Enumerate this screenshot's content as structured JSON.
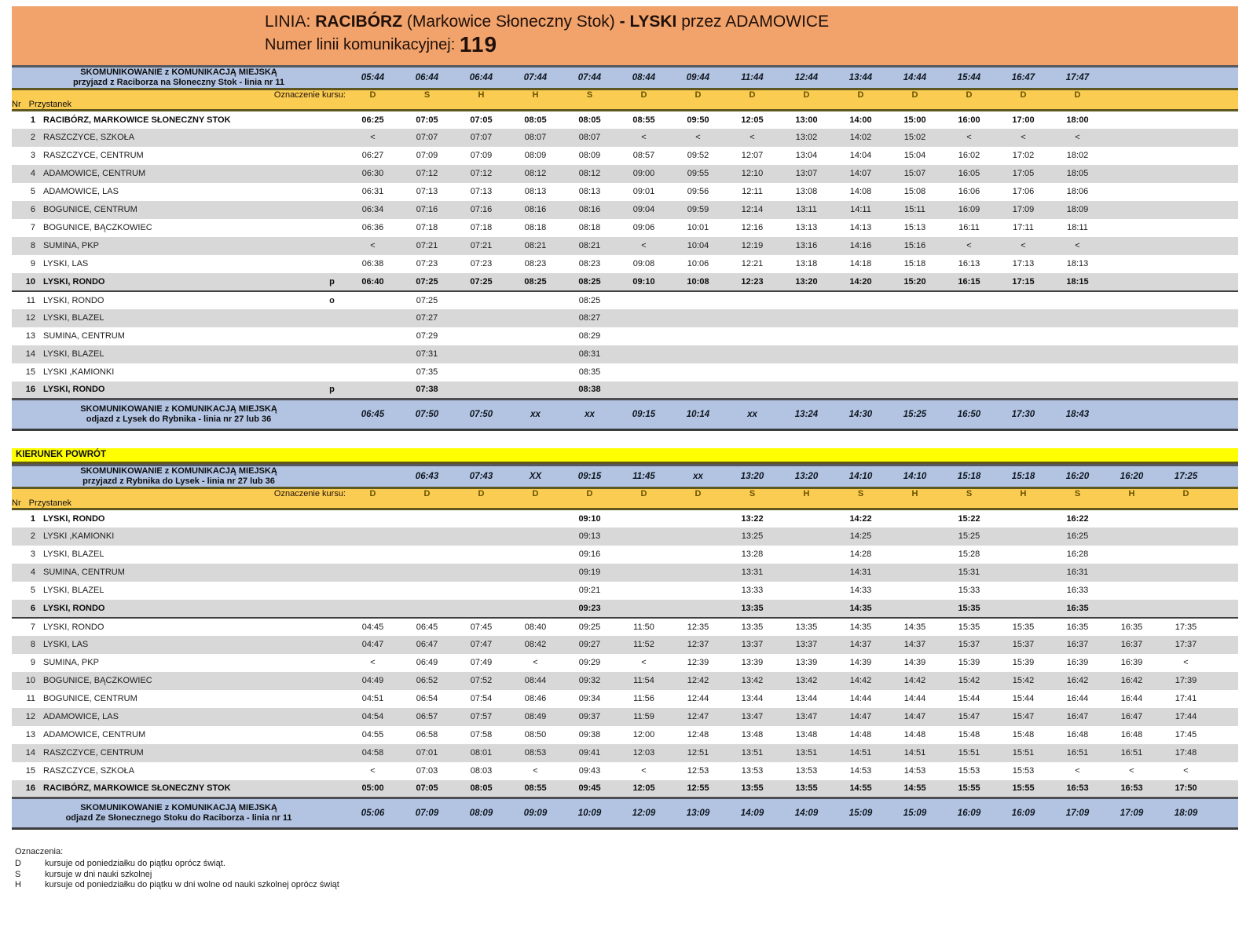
{
  "header": {
    "title_segments": [
      {
        "text": "LINIA: ",
        "bold": false
      },
      {
        "text": "RACIBÓRZ",
        "bold": true
      },
      {
        "text": " (Markowice Słoneczny Stok) ",
        "bold": false
      },
      {
        "text": "- LYSKI",
        "bold": true
      },
      {
        "text": "  przez ADAMOWICE",
        "bold": false
      }
    ],
    "line_number_label": "Numer linii komunikacyjnej: ",
    "line_number": "119"
  },
  "column_marks_label": "Oznaczenie kursu:",
  "stop_header": {
    "nr": "Nr",
    "przystanek": "Przystanek"
  },
  "colors": {
    "orange_header": "#F1A36B",
    "connection_blue": "#B2C4E2",
    "marks_gold": "#FBCC52",
    "banner_yellow": "#FFFF00",
    "stripe_gray": "#D8D8D8"
  },
  "tables": [
    {
      "banner": "",
      "top_connection": {
        "line1": "SKOMUNIKOWANIE z KOMUNIKACJĄ MIEJSKĄ",
        "line2": "przyjazd z Raciborza na Słoneczny Stok - linia nr 11",
        "times": [
          "05:44",
          "06:44",
          "06:44",
          "07:44",
          "07:44",
          "08:44",
          "09:44",
          "11:44",
          "12:44",
          "13:44",
          "14:44",
          "15:44",
          "16:47",
          "17:47",
          "",
          ""
        ]
      },
      "course_marks": [
        "D",
        "S",
        "H",
        "H",
        "S",
        "D",
        "D",
        "D",
        "D",
        "D",
        "D",
        "D",
        "D",
        "D",
        "",
        ""
      ],
      "rows": [
        {
          "nr": "1",
          "stop": "RACIBÓRZ, MARKOWICE SŁONECZNY STOK",
          "marker": "",
          "bold": true,
          "divider_after": false,
          "times": [
            "06:25",
            "07:05",
            "07:05",
            "08:05",
            "08:05",
            "08:55",
            "09:50",
            "12:05",
            "13:00",
            "14:00",
            "15:00",
            "16:00",
            "17:00",
            "18:00",
            "",
            ""
          ]
        },
        {
          "nr": "2",
          "stop": "RASZCZYCE, SZKOŁA",
          "marker": "",
          "bold": false,
          "divider_after": false,
          "times": [
            "<",
            "07:07",
            "07:07",
            "08:07",
            "08:07",
            "<",
            "<",
            "<",
            "13:02",
            "14:02",
            "15:02",
            "<",
            "<",
            "<",
            "",
            ""
          ]
        },
        {
          "nr": "3",
          "stop": "RASZCZYCE, CENTRUM",
          "marker": "",
          "bold": false,
          "divider_after": false,
          "times": [
            "06:27",
            "07:09",
            "07:09",
            "08:09",
            "08:09",
            "08:57",
            "09:52",
            "12:07",
            "13:04",
            "14:04",
            "15:04",
            "16:02",
            "17:02",
            "18:02",
            "",
            ""
          ]
        },
        {
          "nr": "4",
          "stop": "ADAMOWICE, CENTRUM",
          "marker": "",
          "bold": false,
          "divider_after": false,
          "times": [
            "06:30",
            "07:12",
            "07:12",
            "08:12",
            "08:12",
            "09:00",
            "09:55",
            "12:10",
            "13:07",
            "14:07",
            "15:07",
            "16:05",
            "17:05",
            "18:05",
            "",
            ""
          ]
        },
        {
          "nr": "5",
          "stop": "ADAMOWICE, LAS",
          "marker": "",
          "bold": false,
          "divider_after": false,
          "times": [
            "06:31",
            "07:13",
            "07:13",
            "08:13",
            "08:13",
            "09:01",
            "09:56",
            "12:11",
            "13:08",
            "14:08",
            "15:08",
            "16:06",
            "17:06",
            "18:06",
            "",
            ""
          ]
        },
        {
          "nr": "6",
          "stop": "BOGUNICE, CENTRUM",
          "marker": "",
          "bold": false,
          "divider_after": false,
          "times": [
            "06:34",
            "07:16",
            "07:16",
            "08:16",
            "08:16",
            "09:04",
            "09:59",
            "12:14",
            "13:11",
            "14:11",
            "15:11",
            "16:09",
            "17:09",
            "18:09",
            "",
            ""
          ]
        },
        {
          "nr": "7",
          "stop": "BOGUNICE, BĄCZKOWIEC",
          "marker": "",
          "bold": false,
          "divider_after": false,
          "times": [
            "06:36",
            "07:18",
            "07:18",
            "08:18",
            "08:18",
            "09:06",
            "10:01",
            "12:16",
            "13:13",
            "14:13",
            "15:13",
            "16:11",
            "17:11",
            "18:11",
            "",
            ""
          ]
        },
        {
          "nr": "8",
          "stop": "SUMINA, PKP",
          "marker": "",
          "bold": false,
          "divider_after": false,
          "times": [
            "<",
            "07:21",
            "07:21",
            "08:21",
            "08:21",
            "<",
            "10:04",
            "12:19",
            "13:16",
            "14:16",
            "15:16",
            "<",
            "<",
            "<",
            "",
            ""
          ]
        },
        {
          "nr": "9",
          "stop": "LYSKI, LAS",
          "marker": "",
          "bold": false,
          "divider_after": false,
          "times": [
            "06:38",
            "07:23",
            "07:23",
            "08:23",
            "08:23",
            "09:08",
            "10:06",
            "12:21",
            "13:18",
            "14:18",
            "15:18",
            "16:13",
            "17:13",
            "18:13",
            "",
            ""
          ]
        },
        {
          "nr": "10",
          "stop": "LYSKI, RONDO",
          "marker": "p",
          "bold": true,
          "divider_after": true,
          "times": [
            "06:40",
            "07:25",
            "07:25",
            "08:25",
            "08:25",
            "09:10",
            "10:08",
            "12:23",
            "13:20",
            "14:20",
            "15:20",
            "16:15",
            "17:15",
            "18:15",
            "",
            ""
          ]
        },
        {
          "nr": "11",
          "stop": "LYSKI, RONDO",
          "marker": "o",
          "bold": false,
          "divider_after": false,
          "times": [
            "",
            "07:25",
            "",
            "",
            "08:25",
            "",
            "",
            "",
            "",
            "",
            "",
            "",
            "",
            "",
            "",
            ""
          ]
        },
        {
          "nr": "12",
          "stop": "LYSKI, BLAZEL",
          "marker": "",
          "bold": false,
          "divider_after": false,
          "times": [
            "",
            "07:27",
            "",
            "",
            "08:27",
            "",
            "",
            "",
            "",
            "",
            "",
            "",
            "",
            "",
            "",
            ""
          ]
        },
        {
          "nr": "13",
          "stop": "SUMINA, CENTRUM",
          "marker": "",
          "bold": false,
          "divider_after": false,
          "times": [
            "",
            "07:29",
            "",
            "",
            "08:29",
            "",
            "",
            "",
            "",
            "",
            "",
            "",
            "",
            "",
            "",
            ""
          ]
        },
        {
          "nr": "14",
          "stop": "LYSKI, BLAZEL",
          "marker": "",
          "bold": false,
          "divider_after": false,
          "times": [
            "",
            "07:31",
            "",
            "",
            "08:31",
            "",
            "",
            "",
            "",
            "",
            "",
            "",
            "",
            "",
            "",
            ""
          ]
        },
        {
          "nr": "15",
          "stop": "LYSKI ,KAMIONKI",
          "marker": "",
          "bold": false,
          "divider_after": false,
          "times": [
            "",
            "07:35",
            "",
            "",
            "08:35",
            "",
            "",
            "",
            "",
            "",
            "",
            "",
            "",
            "",
            "",
            ""
          ]
        },
        {
          "nr": "16",
          "stop": "LYSKI, RONDO",
          "marker": "p",
          "bold": true,
          "divider_after": false,
          "times": [
            "",
            "07:38",
            "",
            "",
            "08:38",
            "",
            "",
            "",
            "",
            "",
            "",
            "",
            "",
            "",
            "",
            ""
          ]
        }
      ],
      "bottom_connection": {
        "line1": "SKOMUNIKOWANIE z KOMUNIKACJĄ MIEJSKĄ",
        "line2": "odjazd z Lysek do Rybnika - linia nr 27 lub 36",
        "times": [
          "06:45",
          "07:50",
          "07:50",
          "xx",
          "xx",
          "09:15",
          "10:14",
          "xx",
          "13:24",
          "14:30",
          "15:25",
          "16:50",
          "17:30",
          "18:43",
          "",
          ""
        ]
      }
    },
    {
      "banner": "KIERUNEK POWRÓT",
      "top_connection": {
        "line1": "SKOMUNIKOWANIE z KOMUNIKACJĄ MIEJSKĄ",
        "line2": "przyjazd z Rybnika do Lysek - linia nr 27 lub 36",
        "times": [
          "",
          "06:43",
          "07:43",
          "XX",
          "09:15",
          "11:45",
          "xx",
          "13:20",
          "13:20",
          "14:10",
          "14:10",
          "15:18",
          "15:18",
          "16:20",
          "16:20",
          "17:25"
        ]
      },
      "course_marks": [
        "D",
        "D",
        "D",
        "D",
        "D",
        "D",
        "D",
        "S",
        "H",
        "S",
        "H",
        "S",
        "H",
        "S",
        "H",
        "D"
      ],
      "rows": [
        {
          "nr": "1",
          "stop": "LYSKI, RONDO",
          "marker": "",
          "bold": true,
          "divider_after": false,
          "times": [
            "",
            "",
            "",
            "",
            "09:10",
            "",
            "",
            "13:22",
            "",
            "14:22",
            "",
            "15:22",
            "",
            "16:22",
            "",
            ""
          ]
        },
        {
          "nr": "2",
          "stop": "LYSKI ,KAMIONKI",
          "marker": "",
          "bold": false,
          "divider_after": false,
          "times": [
            "",
            "",
            "",
            "",
            "09:13",
            "",
            "",
            "13:25",
            "",
            "14:25",
            "",
            "15:25",
            "",
            "16:25",
            "",
            ""
          ]
        },
        {
          "nr": "3",
          "stop": "LYSKI, BLAZEL",
          "marker": "",
          "bold": false,
          "divider_after": false,
          "times": [
            "",
            "",
            "",
            "",
            "09:16",
            "",
            "",
            "13:28",
            "",
            "14:28",
            "",
            "15:28",
            "",
            "16:28",
            "",
            ""
          ]
        },
        {
          "nr": "4",
          "stop": "SUMINA, CENTRUM",
          "marker": "",
          "bold": false,
          "divider_after": false,
          "times": [
            "",
            "",
            "",
            "",
            "09:19",
            "",
            "",
            "13:31",
            "",
            "14:31",
            "",
            "15:31",
            "",
            "16:31",
            "",
            ""
          ]
        },
        {
          "nr": "5",
          "stop": "LYSKI, BLAZEL",
          "marker": "",
          "bold": false,
          "divider_after": false,
          "times": [
            "",
            "",
            "",
            "",
            "09:21",
            "",
            "",
            "13:33",
            "",
            "14:33",
            "",
            "15:33",
            "",
            "16:33",
            "",
            ""
          ]
        },
        {
          "nr": "6",
          "stop": "LYSKI, RONDO",
          "marker": "",
          "bold": true,
          "divider_after": true,
          "times": [
            "",
            "",
            "",
            "",
            "09:23",
            "",
            "",
            "13:35",
            "",
            "14:35",
            "",
            "15:35",
            "",
            "16:35",
            "",
            ""
          ]
        },
        {
          "nr": "7",
          "stop": "LYSKI, RONDO",
          "marker": "",
          "bold": false,
          "divider_after": false,
          "times": [
            "04:45",
            "06:45",
            "07:45",
            "08:40",
            "09:25",
            "11:50",
            "12:35",
            "13:35",
            "13:35",
            "14:35",
            "14:35",
            "15:35",
            "15:35",
            "16:35",
            "16:35",
            "17:35"
          ]
        },
        {
          "nr": "8",
          "stop": "LYSKI, LAS",
          "marker": "",
          "bold": false,
          "divider_after": false,
          "times": [
            "04:47",
            "06:47",
            "07:47",
            "08:42",
            "09:27",
            "11:52",
            "12:37",
            "13:37",
            "13:37",
            "14:37",
            "14:37",
            "15:37",
            "15:37",
            "16:37",
            "16:37",
            "17:37"
          ]
        },
        {
          "nr": "9",
          "stop": "SUMINA, PKP",
          "marker": "",
          "bold": false,
          "divider_after": false,
          "times": [
            "<",
            "06:49",
            "07:49",
            "<",
            "09:29",
            "<",
            "12:39",
            "13:39",
            "13:39",
            "14:39",
            "14:39",
            "15:39",
            "15:39",
            "16:39",
            "16:39",
            "<"
          ]
        },
        {
          "nr": "10",
          "stop": "BOGUNICE, BĄCZKOWIEC",
          "marker": "",
          "bold": false,
          "divider_after": false,
          "times": [
            "04:49",
            "06:52",
            "07:52",
            "08:44",
            "09:32",
            "11:54",
            "12:42",
            "13:42",
            "13:42",
            "14:42",
            "14:42",
            "15:42",
            "15:42",
            "16:42",
            "16:42",
            "17:39"
          ]
        },
        {
          "nr": "11",
          "stop": "BOGUNICE, CENTRUM",
          "marker": "",
          "bold": false,
          "divider_after": false,
          "times": [
            "04:51",
            "06:54",
            "07:54",
            "08:46",
            "09:34",
            "11:56",
            "12:44",
            "13:44",
            "13:44",
            "14:44",
            "14:44",
            "15:44",
            "15:44",
            "16:44",
            "16:44",
            "17:41"
          ]
        },
        {
          "nr": "12",
          "stop": "ADAMOWICE, LAS",
          "marker": "",
          "bold": false,
          "divider_after": false,
          "times": [
            "04:54",
            "06:57",
            "07:57",
            "08:49",
            "09:37",
            "11:59",
            "12:47",
            "13:47",
            "13:47",
            "14:47",
            "14:47",
            "15:47",
            "15:47",
            "16:47",
            "16:47",
            "17:44"
          ]
        },
        {
          "nr": "13",
          "stop": "ADAMOWICE, CENTRUM",
          "marker": "",
          "bold": false,
          "divider_after": false,
          "times": [
            "04:55",
            "06:58",
            "07:58",
            "08:50",
            "09:38",
            "12:00",
            "12:48",
            "13:48",
            "13:48",
            "14:48",
            "14:48",
            "15:48",
            "15:48",
            "16:48",
            "16:48",
            "17:45"
          ]
        },
        {
          "nr": "14",
          "stop": "RASZCZYCE, CENTRUM",
          "marker": "",
          "bold": false,
          "divider_after": false,
          "times": [
            "04:58",
            "07:01",
            "08:01",
            "08:53",
            "09:41",
            "12:03",
            "12:51",
            "13:51",
            "13:51",
            "14:51",
            "14:51",
            "15:51",
            "15:51",
            "16:51",
            "16:51",
            "17:48"
          ]
        },
        {
          "nr": "15",
          "stop": "RASZCZYCE, SZKOŁA",
          "marker": "",
          "bold": false,
          "divider_after": false,
          "times": [
            "<",
            "07:03",
            "08:03",
            "<",
            "09:43",
            "<",
            "12:53",
            "13:53",
            "13:53",
            "14:53",
            "14:53",
            "15:53",
            "15:53",
            "<",
            "<",
            "<"
          ]
        },
        {
          "nr": "16",
          "stop": "RACIBÓRZ, MARKOWICE SŁONECZNY STOK",
          "marker": "",
          "bold": true,
          "divider_after": false,
          "times": [
            "05:00",
            "07:05",
            "08:05",
            "08:55",
            "09:45",
            "12:05",
            "12:55",
            "13:55",
            "13:55",
            "14:55",
            "14:55",
            "15:55",
            "15:55",
            "16:53",
            "16:53",
            "17:50"
          ]
        }
      ],
      "bottom_connection": {
        "line1": "SKOMUNIKOWANIE z KOMUNIKACJĄ MIEJSKĄ",
        "line2": "odjazd Ze Słonecznego Stoku do Raciborza - linia nr 11",
        "times": [
          "05:06",
          "07:09",
          "08:09",
          "09:09",
          "10:09",
          "12:09",
          "13:09",
          "14:09",
          "14:09",
          "15:09",
          "15:09",
          "16:09",
          "16:09",
          "17:09",
          "17:09",
          "18:09"
        ]
      }
    }
  ],
  "legend": {
    "title": "Oznaczenia:",
    "items": [
      {
        "code": "D",
        "text": "kursuje od poniedziałku do piątku oprócz świąt."
      },
      {
        "code": "S",
        "text": "kursuje w dni nauki szkolnej"
      },
      {
        "code": "H",
        "text": "kursuje od poniedziałku do piątku w dni wolne od nauki szkolnej oprócz świąt"
      }
    ]
  }
}
